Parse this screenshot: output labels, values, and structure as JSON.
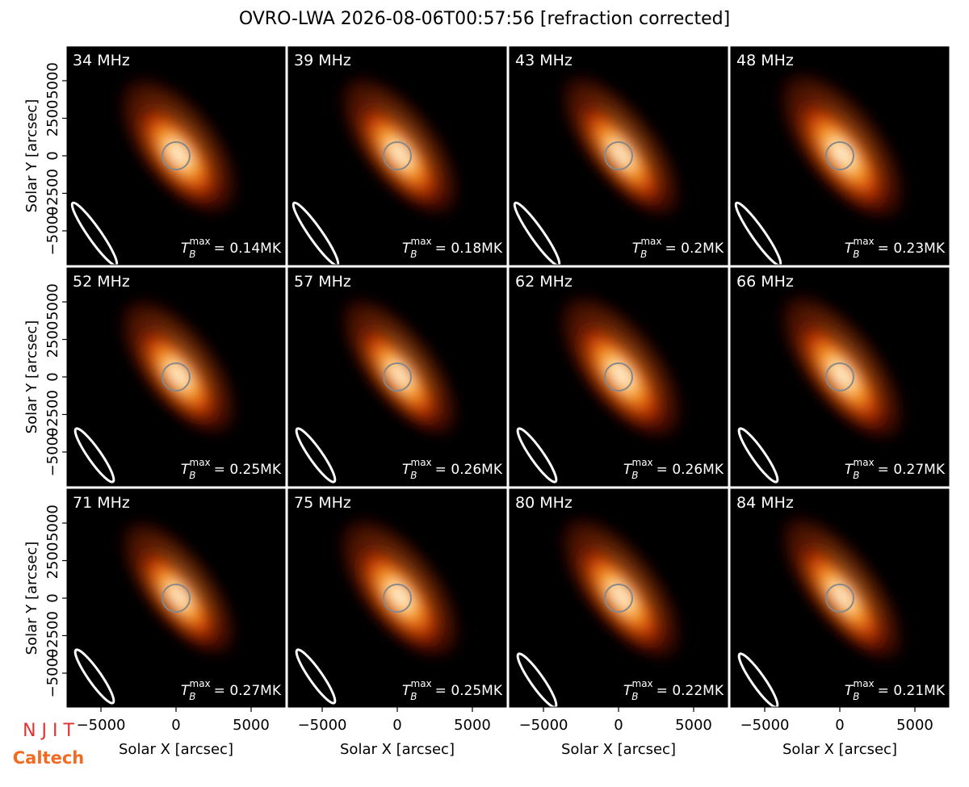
{
  "title": "OVRO-LWA 2026-08-06T00:57:56 [refraction corrected]",
  "x_label": "Solar X [arcsec]",
  "y_label": "Solar Y [arcsec]",
  "xlim": [
    -7260,
    7260
  ],
  "ylim": [
    -7260,
    7260
  ],
  "xticks": [
    {
      "value": -5000,
      "label": "−5000"
    },
    0,
    5000
  ],
  "yticks": [
    {
      "value": -5000,
      "label": "−5000"
    },
    {
      "value": -2500,
      "label": "−2500"
    },
    0,
    2500,
    5000
  ],
  "tmax_symbol": {
    "base": "T",
    "sub": "B",
    "sup": "max"
  },
  "panels": [
    {
      "label": "34 MHz",
      "tmax": "= 0.14MK"
    },
    {
      "label": "39 MHz",
      "tmax": "= 0.18MK"
    },
    {
      "label": "43 MHz",
      "tmax": "= 0.2MK"
    },
    {
      "label": "48 MHz",
      "tmax": "= 0.23MK"
    },
    {
      "label": "52 MHz",
      "tmax": "= 0.25MK"
    },
    {
      "label": "57 MHz",
      "tmax": "= 0.26MK"
    },
    {
      "label": "62 MHz",
      "tmax": "= 0.26MK"
    },
    {
      "label": "66 MHz",
      "tmax": "= 0.27MK"
    },
    {
      "label": "71 MHz",
      "tmax": "= 0.27MK"
    },
    {
      "label": "75 MHz",
      "tmax": "= 0.25MK"
    },
    {
      "label": "80 MHz",
      "tmax": "= 0.22MK"
    },
    {
      "label": "84 MHz",
      "tmax": "= 0.21MK"
    }
  ],
  "logos": [
    "N J I T",
    "Caltech"
  ]
}
